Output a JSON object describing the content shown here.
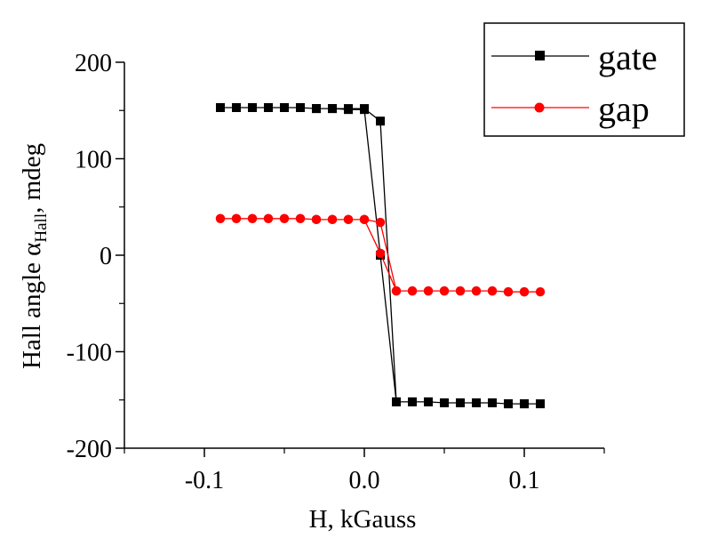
{
  "chart_data": {
    "type": "line",
    "xlabel": "H, kGauss",
    "ylabel_main": "Hall angle α",
    "ylabel_sub": "Hall",
    "ylabel_tail": ", mdeg",
    "xlim": [
      -0.15,
      0.15
    ],
    "ylim": [
      -200,
      200
    ],
    "x_ticks": [
      {
        "value": -0.1,
        "label": "-0.1"
      },
      {
        "value": 0.0,
        "label": "0.0"
      },
      {
        "value": 0.1,
        "label": "0.1"
      }
    ],
    "y_ticks": [
      {
        "value": 200,
        "label": "200"
      },
      {
        "value": 100,
        "label": "100"
      },
      {
        "value": 0,
        "label": "0"
      },
      {
        "value": -100,
        "label": "-100"
      },
      {
        "value": -200,
        "label": "-200"
      }
    ],
    "grid": false,
    "legend_position": "top-right",
    "series": [
      {
        "name": "gate",
        "color": "#000000",
        "marker": "square",
        "x": [
          -0.09,
          -0.08,
          -0.07,
          -0.06,
          -0.05,
          -0.04,
          -0.03,
          -0.02,
          -0.01,
          0.0,
          0.01,
          0.02,
          0.03,
          0.04,
          0.05,
          0.06,
          0.07,
          0.08,
          0.09,
          0.1,
          0.11,
          0.1,
          0.09,
          0.08,
          0.07,
          0.06,
          0.05,
          0.04,
          0.03,
          0.02,
          0.01,
          0.0,
          -0.01,
          -0.02,
          -0.03,
          -0.04,
          -0.05,
          -0.06,
          -0.07,
          -0.08,
          -0.09
        ],
        "y": [
          153,
          153,
          153,
          153,
          153,
          153,
          152,
          152,
          151,
          151,
          0,
          -152,
          -152,
          -152,
          -153,
          -153,
          -153,
          -153,
          -154,
          -154,
          -154,
          -154,
          -154,
          -153,
          -153,
          -153,
          -153,
          -152,
          -152,
          -152,
          139,
          152,
          152,
          152,
          152,
          153,
          153,
          153,
          153,
          153,
          153
        ]
      },
      {
        "name": "gap",
        "color": "#ff0000",
        "marker": "circle",
        "x": [
          -0.09,
          -0.08,
          -0.07,
          -0.06,
          -0.05,
          -0.04,
          -0.03,
          -0.02,
          -0.01,
          0.0,
          0.01,
          0.02,
          0.03,
          0.04,
          0.05,
          0.06,
          0.07,
          0.08,
          0.09,
          0.1,
          0.11,
          0.1,
          0.09,
          0.08,
          0.07,
          0.06,
          0.05,
          0.04,
          0.03,
          0.02,
          0.01,
          0.0,
          -0.01,
          -0.02,
          -0.03,
          -0.04,
          -0.05,
          -0.06,
          -0.07,
          -0.08,
          -0.09
        ],
        "y": [
          38,
          38,
          38,
          38,
          38,
          38,
          37,
          37,
          37,
          37,
          2,
          -37,
          -37,
          -37,
          -37,
          -37,
          -37,
          -37,
          -38,
          -38,
          -38,
          -38,
          -38,
          -37,
          -37,
          -37,
          -37,
          -37,
          -37,
          -37,
          34,
          37,
          37,
          37,
          37,
          38,
          38,
          38,
          38,
          38,
          38
        ]
      }
    ]
  }
}
